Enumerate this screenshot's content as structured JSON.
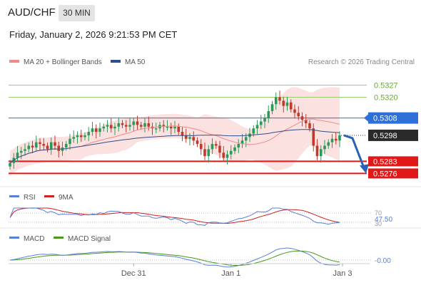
{
  "header": {
    "symbol": "AUD/CHF",
    "timeframe": "30 MIN",
    "datetime": "Friday, January 2, 2026 9:21:53 PM CET"
  },
  "legend": [
    {
      "label": "MA 20 + Bollinger Bands",
      "color": "#f08a8a"
    },
    {
      "label": "MA 50",
      "color": "#2b4f8a"
    }
  ],
  "credit": "Research © 2026 Trading Central",
  "chart_data": {
    "type": "candlestick",
    "price_range": [
      0.527,
      0.5335
    ],
    "current_price": 0.5298,
    "resistance_levels": [
      {
        "label": "0.5327",
        "value": 0.5327,
        "color": "#9ccc70"
      },
      {
        "label": "0.5320",
        "value": 0.532,
        "color": "#9ccc70"
      }
    ],
    "pivot": {
      "label": "0.5308",
      "value": 0.5308,
      "color": "#2f6fd8"
    },
    "support_levels": [
      {
        "label": "0.5283",
        "value": 0.5283,
        "color": "#e01818"
      },
      {
        "label": "0.5276",
        "value": 0.5276,
        "color": "#e01818"
      }
    ],
    "price_label": {
      "label": "0.5298",
      "value": 0.5298
    },
    "forecast": {
      "direction": "down",
      "from": 0.5298,
      "to": 0.5276
    },
    "x_labels": [
      "Dec 31",
      "Jan 1",
      "Jan 3"
    ],
    "closes": [
      0.5282,
      0.5285,
      0.5288,
      0.5289,
      0.529,
      0.5292,
      0.5291,
      0.5294,
      0.5293,
      0.5292,
      0.529,
      0.5294,
      0.5292,
      0.5289,
      0.5291,
      0.5293,
      0.5296,
      0.5297,
      0.5298,
      0.5297,
      0.5298,
      0.53,
      0.5302,
      0.53,
      0.5302,
      0.5303,
      0.5304,
      0.5302,
      0.5303,
      0.5305,
      0.5304,
      0.5303,
      0.5304,
      0.5306,
      0.5304,
      0.5303,
      0.5305,
      0.5303,
      0.5302,
      0.5302,
      0.5304,
      0.5303,
      0.5303,
      0.5302,
      0.5303,
      0.53,
      0.5298,
      0.5296,
      0.5297,
      0.5295,
      0.5293,
      0.529,
      0.5286,
      0.529,
      0.5293,
      0.5292,
      0.5288,
      0.5285,
      0.5287,
      0.5289,
      0.5291,
      0.5293,
      0.5295,
      0.5297,
      0.5299,
      0.5302,
      0.5304,
      0.5306,
      0.5308,
      0.5312,
      0.5316,
      0.532,
      0.5318,
      0.5315,
      0.5317,
      0.5313,
      0.5311,
      0.5309,
      0.5307,
      0.5305,
      0.5302,
      0.5292,
      0.5286,
      0.529,
      0.5292,
      0.5294,
      0.5296,
      0.5295,
      0.5298
    ],
    "rsi": {
      "label": "RSI",
      "ma_label": "9MA",
      "value_label": "47.50",
      "levels": [
        "70",
        "30"
      ]
    },
    "macd": {
      "label": "MACD",
      "signal_label": "MACD Signal",
      "value_label": "-0.00"
    }
  }
}
